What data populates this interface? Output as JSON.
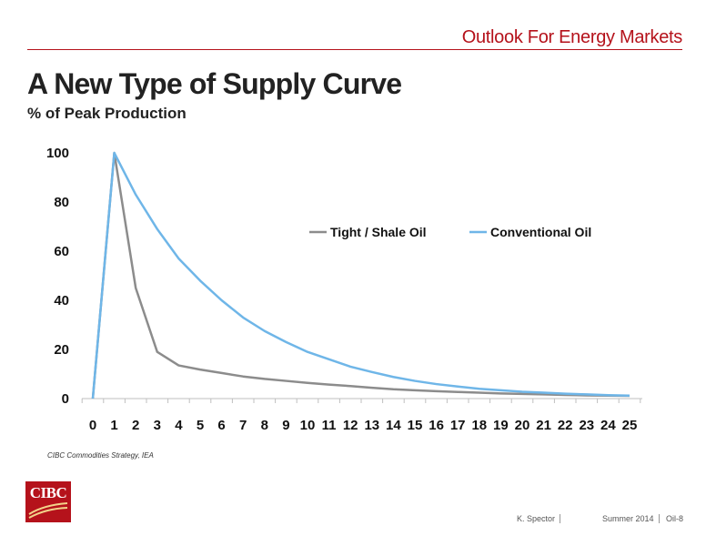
{
  "header": {
    "section": "Outlook For Energy Markets"
  },
  "slide": {
    "title": "A New Type of Supply Curve",
    "subtitle": "% of Peak Production",
    "source": "CIBC Commodities Strategy, IEA"
  },
  "logo": {
    "text": "CIBC"
  },
  "footer": {
    "author": "K. Spector",
    "date": "Summer 2014",
    "page": "Oil-8"
  },
  "colors": {
    "accent": "#b5121b",
    "shale": "#8c8c8c",
    "conventional": "#6fb6e8"
  },
  "chart_data": {
    "type": "line",
    "x": [
      0,
      1,
      2,
      3,
      4,
      5,
      6,
      7,
      8,
      9,
      10,
      11,
      12,
      13,
      14,
      15,
      16,
      17,
      18,
      19,
      20,
      21,
      22,
      23,
      24,
      25
    ],
    "xlim": [
      0,
      25
    ],
    "ylim": [
      0,
      100
    ],
    "yticks": [
      0,
      20,
      40,
      60,
      80,
      100
    ],
    "legend_position": "upper-center",
    "grid": false,
    "series": [
      {
        "name": "Tight / Shale Oil",
        "color": "#8c8c8c",
        "values": [
          0,
          100,
          45,
          19,
          13.5,
          11.8,
          10.4,
          9,
          8,
          7.2,
          6.4,
          5.7,
          5.1,
          4.4,
          3.8,
          3.4,
          3,
          2.7,
          2.4,
          2.1,
          1.9,
          1.7,
          1.5,
          1.3,
          1.2,
          1.1
        ]
      },
      {
        "name": "Conventional Oil",
        "color": "#6fb6e8",
        "values": [
          0,
          100,
          83,
          69,
          57,
          48,
          40,
          33,
          27.5,
          23,
          19,
          16,
          13,
          10.8,
          8.8,
          7.2,
          5.9,
          4.9,
          4,
          3.4,
          2.8,
          2.4,
          2,
          1.7,
          1.4,
          1.2
        ]
      }
    ]
  }
}
